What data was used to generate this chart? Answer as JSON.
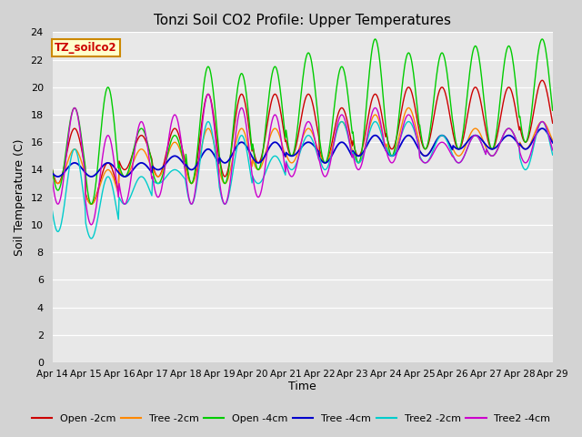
{
  "title": "Tonzi Soil CO2 Profile: Upper Temperatures",
  "xlabel": "Time",
  "ylabel": "Soil Temperature (C)",
  "ylim": [
    0,
    24
  ],
  "yticks": [
    0,
    2,
    4,
    6,
    8,
    10,
    12,
    14,
    16,
    18,
    20,
    22,
    24
  ],
  "x_labels": [
    "Apr 14",
    "Apr 15",
    "Apr 16",
    "Apr 17",
    "Apr 18",
    "Apr 19",
    "Apr 20",
    "Apr 21",
    "Apr 22",
    "Apr 23",
    "Apr 24",
    "Apr 25",
    "Apr 26",
    "Apr 27",
    "Apr 28",
    "Apr 29"
  ],
  "series_colors": {
    "Open -2cm": "#cc0000",
    "Tree -2cm": "#ff8800",
    "Open -4cm": "#00cc00",
    "Tree -4cm": "#0000cc",
    "Tree2 -2cm": "#00cccc",
    "Tree2 -4cm": "#cc00cc"
  },
  "watermark": "TZ_soilco2",
  "bg_color": "#d3d3d3",
  "plot_bg": "#e8e8e8",
  "grid_color": "#ffffff"
}
